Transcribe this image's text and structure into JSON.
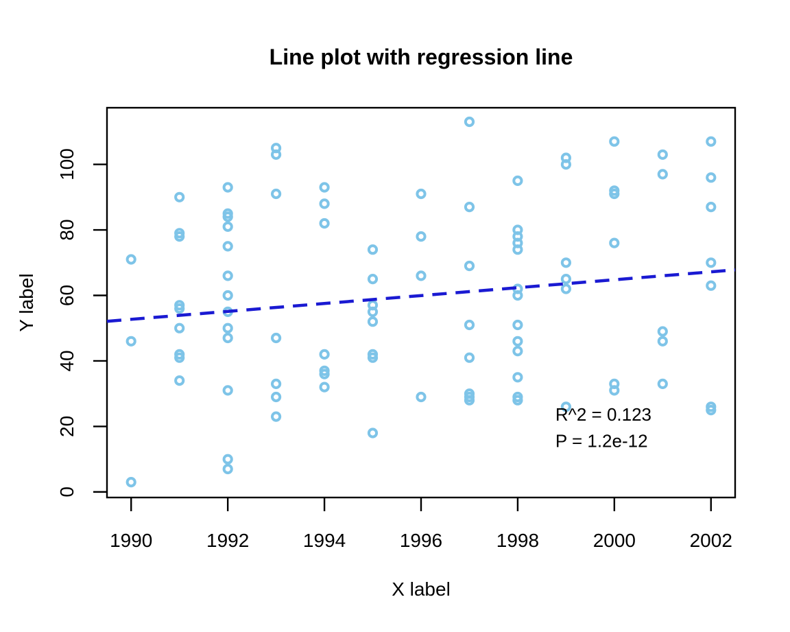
{
  "chart_data": {
    "type": "scatter",
    "title": "Line plot with regression line",
    "xlabel": "X label",
    "ylabel": "Y label",
    "xlim": [
      1989.5,
      2002.5
    ],
    "ylim": [
      -1.7,
      117.3
    ],
    "x_ticks": [
      1990,
      1992,
      1994,
      1996,
      1998,
      2000,
      2002
    ],
    "y_ticks": [
      0,
      20,
      40,
      60,
      80,
      100
    ],
    "grid": false,
    "point_color": "#7EC4E8",
    "regression_color": "#1A1AD2",
    "regression_style": "dashed",
    "regression": {
      "x": [
        1989.5,
        2002.5
      ],
      "y": [
        52.1,
        67.8
      ]
    },
    "annotation": {
      "lines": [
        "R^2 = 0.123",
        "P = 1.2e-12"
      ],
      "x": 1998.78,
      "y": [
        21.8,
        13.7
      ],
      "color": "#000000"
    },
    "points": [
      [
        1990,
        71
      ],
      [
        1990,
        46
      ],
      [
        1990,
        3
      ],
      [
        1991,
        90
      ],
      [
        1991,
        79
      ],
      [
        1991,
        78
      ],
      [
        1991,
        57
      ],
      [
        1991,
        56
      ],
      [
        1991,
        50
      ],
      [
        1991,
        42
      ],
      [
        1991,
        41
      ],
      [
        1991,
        34
      ],
      [
        1992,
        93
      ],
      [
        1992,
        85
      ],
      [
        1992,
        84
      ],
      [
        1992,
        81
      ],
      [
        1992,
        75
      ],
      [
        1992,
        66
      ],
      [
        1992,
        60
      ],
      [
        1992,
        55
      ],
      [
        1992,
        50
      ],
      [
        1992,
        47
      ],
      [
        1992,
        31
      ],
      [
        1992,
        10
      ],
      [
        1992,
        7
      ],
      [
        1993,
        105
      ],
      [
        1993,
        103
      ],
      [
        1993,
        91
      ],
      [
        1993,
        47
      ],
      [
        1993,
        33
      ],
      [
        1993,
        29
      ],
      [
        1993,
        23
      ],
      [
        1994,
        93
      ],
      [
        1994,
        88
      ],
      [
        1994,
        82
      ],
      [
        1994,
        42
      ],
      [
        1994,
        37
      ],
      [
        1994,
        36
      ],
      [
        1994,
        32
      ],
      [
        1995,
        74
      ],
      [
        1995,
        65
      ],
      [
        1995,
        57
      ],
      [
        1995,
        55
      ],
      [
        1995,
        52
      ],
      [
        1995,
        42
      ],
      [
        1995,
        41
      ],
      [
        1995,
        18
      ],
      [
        1996,
        91
      ],
      [
        1996,
        78
      ],
      [
        1996,
        66
      ],
      [
        1996,
        29
      ],
      [
        1997,
        113
      ],
      [
        1997,
        87
      ],
      [
        1997,
        69
      ],
      [
        1997,
        51
      ],
      [
        1997,
        41
      ],
      [
        1997,
        30
      ],
      [
        1997,
        29
      ],
      [
        1997,
        28
      ],
      [
        1998,
        95
      ],
      [
        1998,
        80
      ],
      [
        1998,
        78
      ],
      [
        1998,
        76
      ],
      [
        1998,
        74
      ],
      [
        1998,
        62
      ],
      [
        1998,
        60
      ],
      [
        1998,
        51
      ],
      [
        1998,
        46
      ],
      [
        1998,
        43
      ],
      [
        1998,
        35
      ],
      [
        1998,
        29
      ],
      [
        1998,
        28
      ],
      [
        1999,
        102
      ],
      [
        1999,
        100
      ],
      [
        1999,
        70
      ],
      [
        1999,
        65
      ],
      [
        1999,
        62
      ],
      [
        1999,
        26
      ],
      [
        2000,
        107
      ],
      [
        2000,
        92
      ],
      [
        2000,
        91
      ],
      [
        2000,
        76
      ],
      [
        2000,
        33
      ],
      [
        2000,
        31
      ],
      [
        2001,
        103
      ],
      [
        2001,
        97
      ],
      [
        2001,
        49
      ],
      [
        2001,
        46
      ],
      [
        2001,
        33
      ],
      [
        2002,
        107
      ],
      [
        2002,
        96
      ],
      [
        2002,
        87
      ],
      [
        2002,
        70
      ],
      [
        2002,
        63
      ],
      [
        2002,
        26
      ],
      [
        2002,
        25
      ]
    ]
  }
}
